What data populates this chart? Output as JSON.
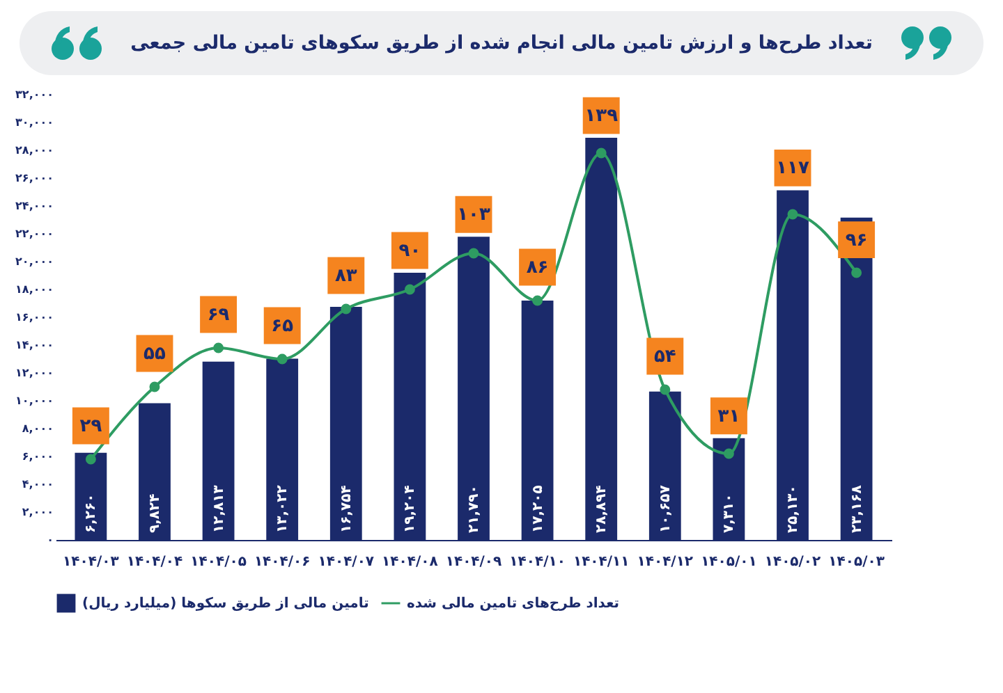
{
  "chart_data": {
    "type": "bar",
    "title": "تعداد طرح‌ها و ارزش تامین مالی انجام شده از طریق سکوهای تامین مالی جمعی",
    "categories": [
      "۱۴۰۴/۰۳",
      "۱۴۰۴/۰۴",
      "۱۴۰۴/۰۵",
      "۱۴۰۴/۰۶",
      "۱۴۰۴/۰۷",
      "۱۴۰۴/۰۸",
      "۱۴۰۴/۰۹",
      "۱۴۰۴/۱۰",
      "۱۴۰۴/۱۱",
      "۱۴۰۴/۱۲",
      "۱۴۰۵/۰۱",
      "۱۴۰۵/۰۲",
      "۱۴۰۵/۰۳"
    ],
    "series": [
      {
        "name": "تامین مالی از طریق سکوها (میلیارد ریال)",
        "color": "#1b2a6b",
        "values": [
          6260,
          9824,
          12813,
          13022,
          16754,
          19204,
          21790,
          17205,
          28894,
          10657,
          7310,
          25130,
          23168
        ],
        "value_labels": [
          "۶,۲۶۰",
          "۹,۸۲۴",
          "۱۲,۸۱۳",
          "۱۳,۰۲۲",
          "۱۶,۷۵۴",
          "۱۹,۲۰۴",
          "۲۱,۷۹۰",
          "۱۷,۲۰۵",
          "۲۸,۸۹۴",
          "۱۰,۶۵۷",
          "۷,۳۱۰",
          "۲۵,۱۳۰",
          "۲۳,۱۶۸"
        ]
      },
      {
        "name": "تعداد طرح‌های تامین مالی شده",
        "type": "line",
        "axis": "y2",
        "color": "#2e9c62",
        "values": [
          29,
          55,
          69,
          65,
          83,
          90,
          103,
          86,
          139,
          54,
          31,
          117,
          96
        ],
        "value_labels": [
          "۲۹",
          "۵۵",
          "۶۹",
          "۶۵",
          "۸۳",
          "۹۰",
          "۱۰۳",
          "۸۶",
          "۱۳۹",
          "۵۴",
          "۳۱",
          "۱۱۷",
          "۹۶"
        ]
      }
    ],
    "ylim": [
      0,
      32000
    ],
    "yticks": [
      {
        "value": 0,
        "label": "۰"
      },
      {
        "value": 2000,
        "label": "۲,۰۰۰"
      },
      {
        "value": 4000,
        "label": "۴,۰۰۰"
      },
      {
        "value": 6000,
        "label": "۶,۰۰۰"
      },
      {
        "value": 8000,
        "label": "۸,۰۰۰"
      },
      {
        "value": 10000,
        "label": "۱۰,۰۰۰"
      },
      {
        "value": 12000,
        "label": "۱۲,۰۰۰"
      },
      {
        "value": 14000,
        "label": "۱۴,۰۰۰"
      },
      {
        "value": 16000,
        "label": "۱۶,۰۰۰"
      },
      {
        "value": 18000,
        "label": "۱۸,۰۰۰"
      },
      {
        "value": 20000,
        "label": "۲۰,۰۰۰"
      },
      {
        "value": 22000,
        "label": "۲۲,۰۰۰"
      },
      {
        "value": 24000,
        "label": "۲۴,۰۰۰"
      },
      {
        "value": 26000,
        "label": "۲۶,۰۰۰"
      },
      {
        "value": 28000,
        "label": "۲۸,۰۰۰"
      },
      {
        "value": 30000,
        "label": "۳۰,۰۰۰"
      },
      {
        "value": 32000,
        "label": "۳۲,۰۰۰"
      }
    ],
    "legend": "bottom",
    "marker": "circle",
    "line_style": "solid"
  }
}
